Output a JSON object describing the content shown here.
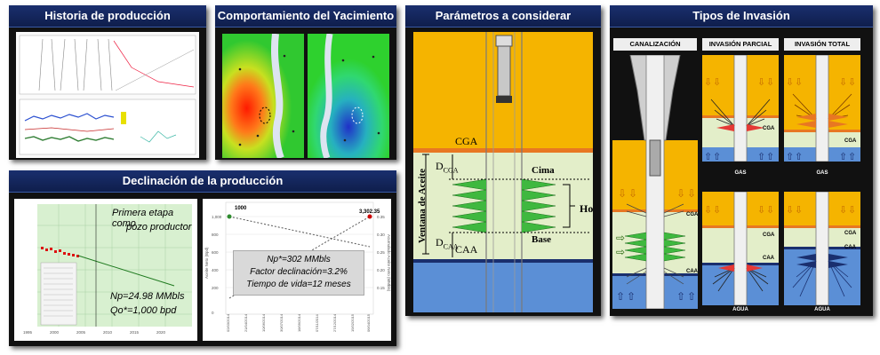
{
  "panels": {
    "historia": {
      "title": "Historia de producción"
    },
    "yacimiento": {
      "title": "Comportamiento del Yacimiento"
    },
    "parametros": {
      "title": "Parámetros a considerar"
    },
    "invasion": {
      "title": "Tipos de Invasión"
    },
    "declinacion": {
      "title": "Declinación de la producción"
    }
  },
  "parametros": {
    "cga": "CGA",
    "caa": "CAA",
    "dcga": "D",
    "dcga_sub": "CGA",
    "dcaa": "D",
    "dcaa_sub": "CAA",
    "ventana": "Ventana de Aceite",
    "cima": "Cima",
    "base": "Base",
    "ho": "Ho"
  },
  "invasion": {
    "col1": "CANALIZACIÓN",
    "col2": "INVASIÓN PARCIAL",
    "col3": "INVASIÓN TOTAL",
    "gas": "GAS",
    "agua": "AGUA",
    "cga": "CGA",
    "caa": "CAA"
  },
  "declinacion": {
    "left_line1": "Primera etapa como",
    "left_line2": "pozo productor",
    "np": "Np=24.98 MMbls",
    "qo": "Qo*=1,000 bpd",
    "right_np": "Np*=302 MMbls",
    "right_factor": "Factor declinación=3.2%",
    "right_vida": "Tiempo de vida=12 meses",
    "right_start": "1000",
    "right_end": "3,302.35"
  },
  "colors": {
    "header": "#14275e",
    "gas": "#f5b400",
    "oil": "#e3eec9",
    "water": "#5b8fd6",
    "contact": "#e87722"
  }
}
